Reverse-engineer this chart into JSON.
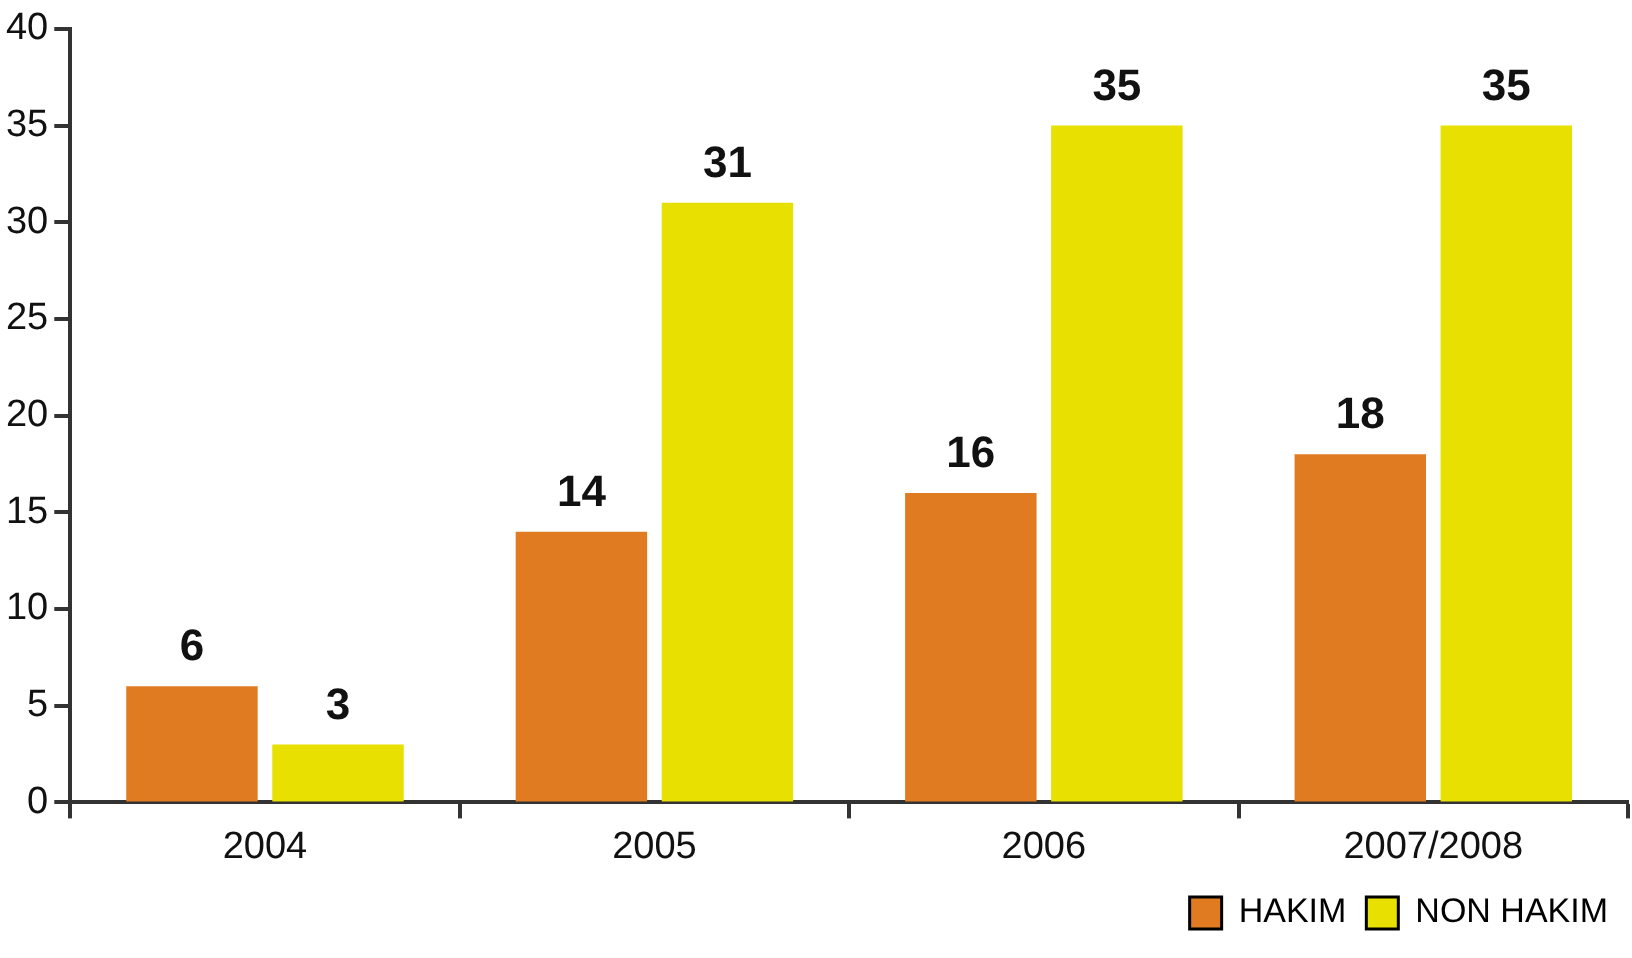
{
  "chart_data": {
    "type": "bar",
    "categories": [
      "2004",
      "2005",
      "2006",
      "2007/2008"
    ],
    "series": [
      {
        "name": "HAKIM",
        "color": "#e07b22",
        "values": [
          6,
          14,
          16,
          18
        ]
      },
      {
        "name": "NON HAKIM",
        "color": "#e8e000",
        "values": [
          3,
          31,
          35,
          35
        ]
      }
    ],
    "ylim": [
      0,
      40
    ],
    "yticks": [
      0,
      5,
      10,
      15,
      20,
      25,
      30,
      35,
      40
    ],
    "grid": false,
    "legend": "bottom right",
    "data_labels": true
  }
}
